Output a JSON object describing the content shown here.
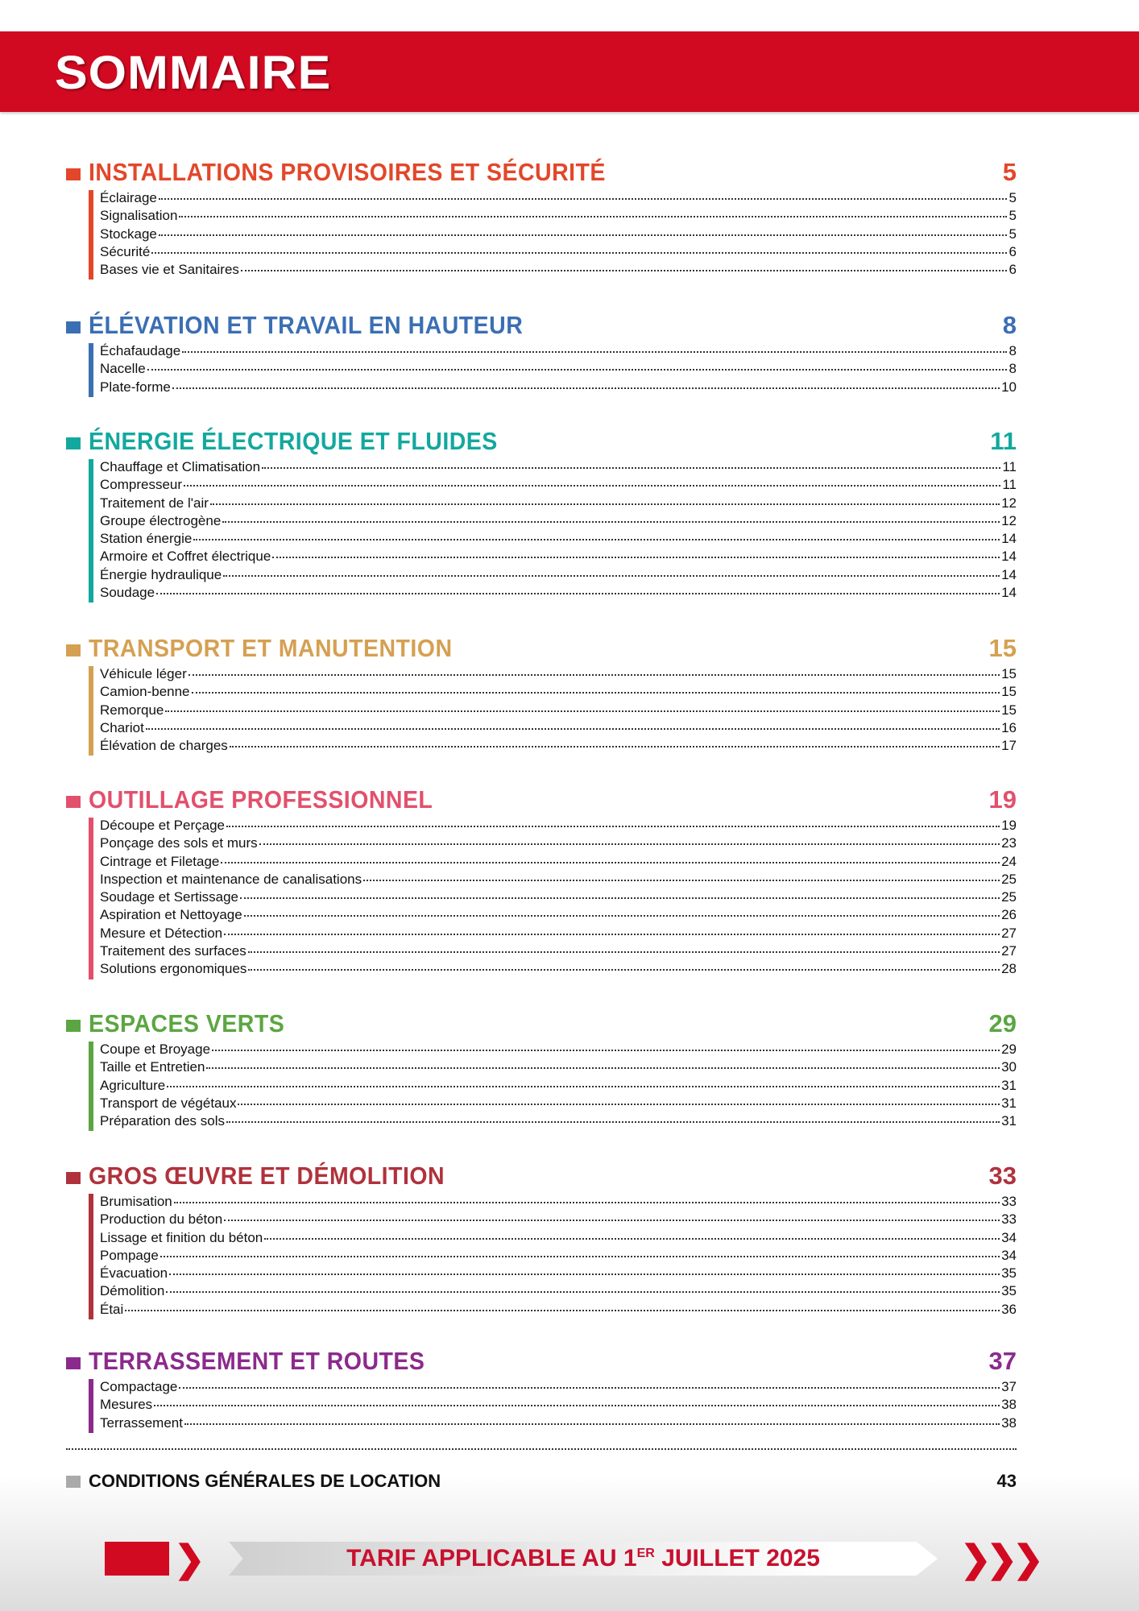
{
  "header": {
    "title": "SOMMAIRE",
    "color": "#d10a21"
  },
  "sections": [
    {
      "title": "INSTALLATIONS PROVISOIRES ET SÉCURITÉ",
      "page": "5",
      "color": "#e2472a",
      "items": [
        [
          "Éclairage",
          "5"
        ],
        [
          "Signalisation",
          "5"
        ],
        [
          "Stockage",
          "5"
        ],
        [
          "Sécurité",
          "6"
        ],
        [
          "Bases vie et Sanitaires",
          "6"
        ]
      ]
    },
    {
      "title": "ÉLÉVATION ET TRAVAIL EN HAUTEUR",
      "page": "8",
      "color": "#3b6fb3",
      "items": [
        [
          "Échafaudage",
          "8"
        ],
        [
          "Nacelle",
          "8"
        ],
        [
          "Plate-forme",
          "10"
        ]
      ]
    },
    {
      "title": "ÉNERGIE ÉLECTRIQUE ET FLUIDES",
      "page": "11",
      "color": "#13a89e",
      "items": [
        [
          "Chauffage et Climatisation",
          "11"
        ],
        [
          "Compresseur",
          "11"
        ],
        [
          "Traitement de l'air",
          "12"
        ],
        [
          "Groupe électrogène",
          "12"
        ],
        [
          "Station énergie",
          "14"
        ],
        [
          "Armoire et Coffret électrique",
          "14"
        ],
        [
          "Énergie hydraulique",
          "14"
        ],
        [
          "Soudage",
          "14"
        ]
      ]
    },
    {
      "title": "TRANSPORT ET MANUTENTION",
      "page": "15",
      "color": "#d5a052",
      "items": [
        [
          "Véhicule léger",
          "15"
        ],
        [
          "Camion-benne",
          "15"
        ],
        [
          "Remorque",
          "15"
        ],
        [
          "Chariot",
          "16"
        ],
        [
          "Élévation de charges",
          "17"
        ]
      ]
    },
    {
      "title": "OUTILLAGE PROFESSIONNEL",
      "page": "19",
      "color": "#e2506c",
      "items": [
        [
          "Découpe et Perçage",
          "19"
        ],
        [
          "Ponçage des sols et murs",
          "23"
        ],
        [
          "Cintrage et Filetage",
          "24"
        ],
        [
          "Inspection et maintenance de canalisations",
          "25"
        ],
        [
          "Soudage et Sertissage",
          "25"
        ],
        [
          "Aspiration et Nettoyage",
          "26"
        ],
        [
          "Mesure et Détection",
          "27"
        ],
        [
          "Traitement des surfaces",
          "27"
        ],
        [
          "Solutions ergonomiques",
          "28"
        ]
      ]
    },
    {
      "title": "ESPACES VERTS",
      "page": "29",
      "color": "#5ba642",
      "items": [
        [
          "Coupe et Broyage",
          "29"
        ],
        [
          "Taille et Entretien",
          "30"
        ],
        [
          "Agriculture",
          "31"
        ],
        [
          "Transport de végétaux",
          "31"
        ],
        [
          "Préparation des sols",
          "31"
        ]
      ]
    },
    {
      "title": "GROS ŒUVRE ET DÉMOLITION",
      "page": "33",
      "color": "#b0323c",
      "items": [
        [
          "Brumisation",
          "33"
        ],
        [
          "Production du béton",
          "33"
        ],
        [
          "Lissage et finition du béton",
          "34"
        ],
        [
          "Pompage",
          "34"
        ],
        [
          "Évacuation",
          "35"
        ],
        [
          "Démolition",
          "35"
        ],
        [
          "Étai",
          "36"
        ]
      ]
    },
    {
      "title": "TERRASSEMENT ET ROUTES",
      "page": "37",
      "color": "#8b2a8c",
      "items": [
        [
          "Compactage",
          "37"
        ],
        [
          "Mesures",
          "38"
        ],
        [
          "Terrassement",
          "38"
        ]
      ]
    }
  ],
  "conditions": {
    "title": "CONDITIONS GÉNÉRALES DE LOCATION",
    "page": "43"
  },
  "banner": {
    "text": "TARIF APPLICABLE AU 1",
    "sup": "ER",
    "text2": " JUILLET 2025"
  }
}
